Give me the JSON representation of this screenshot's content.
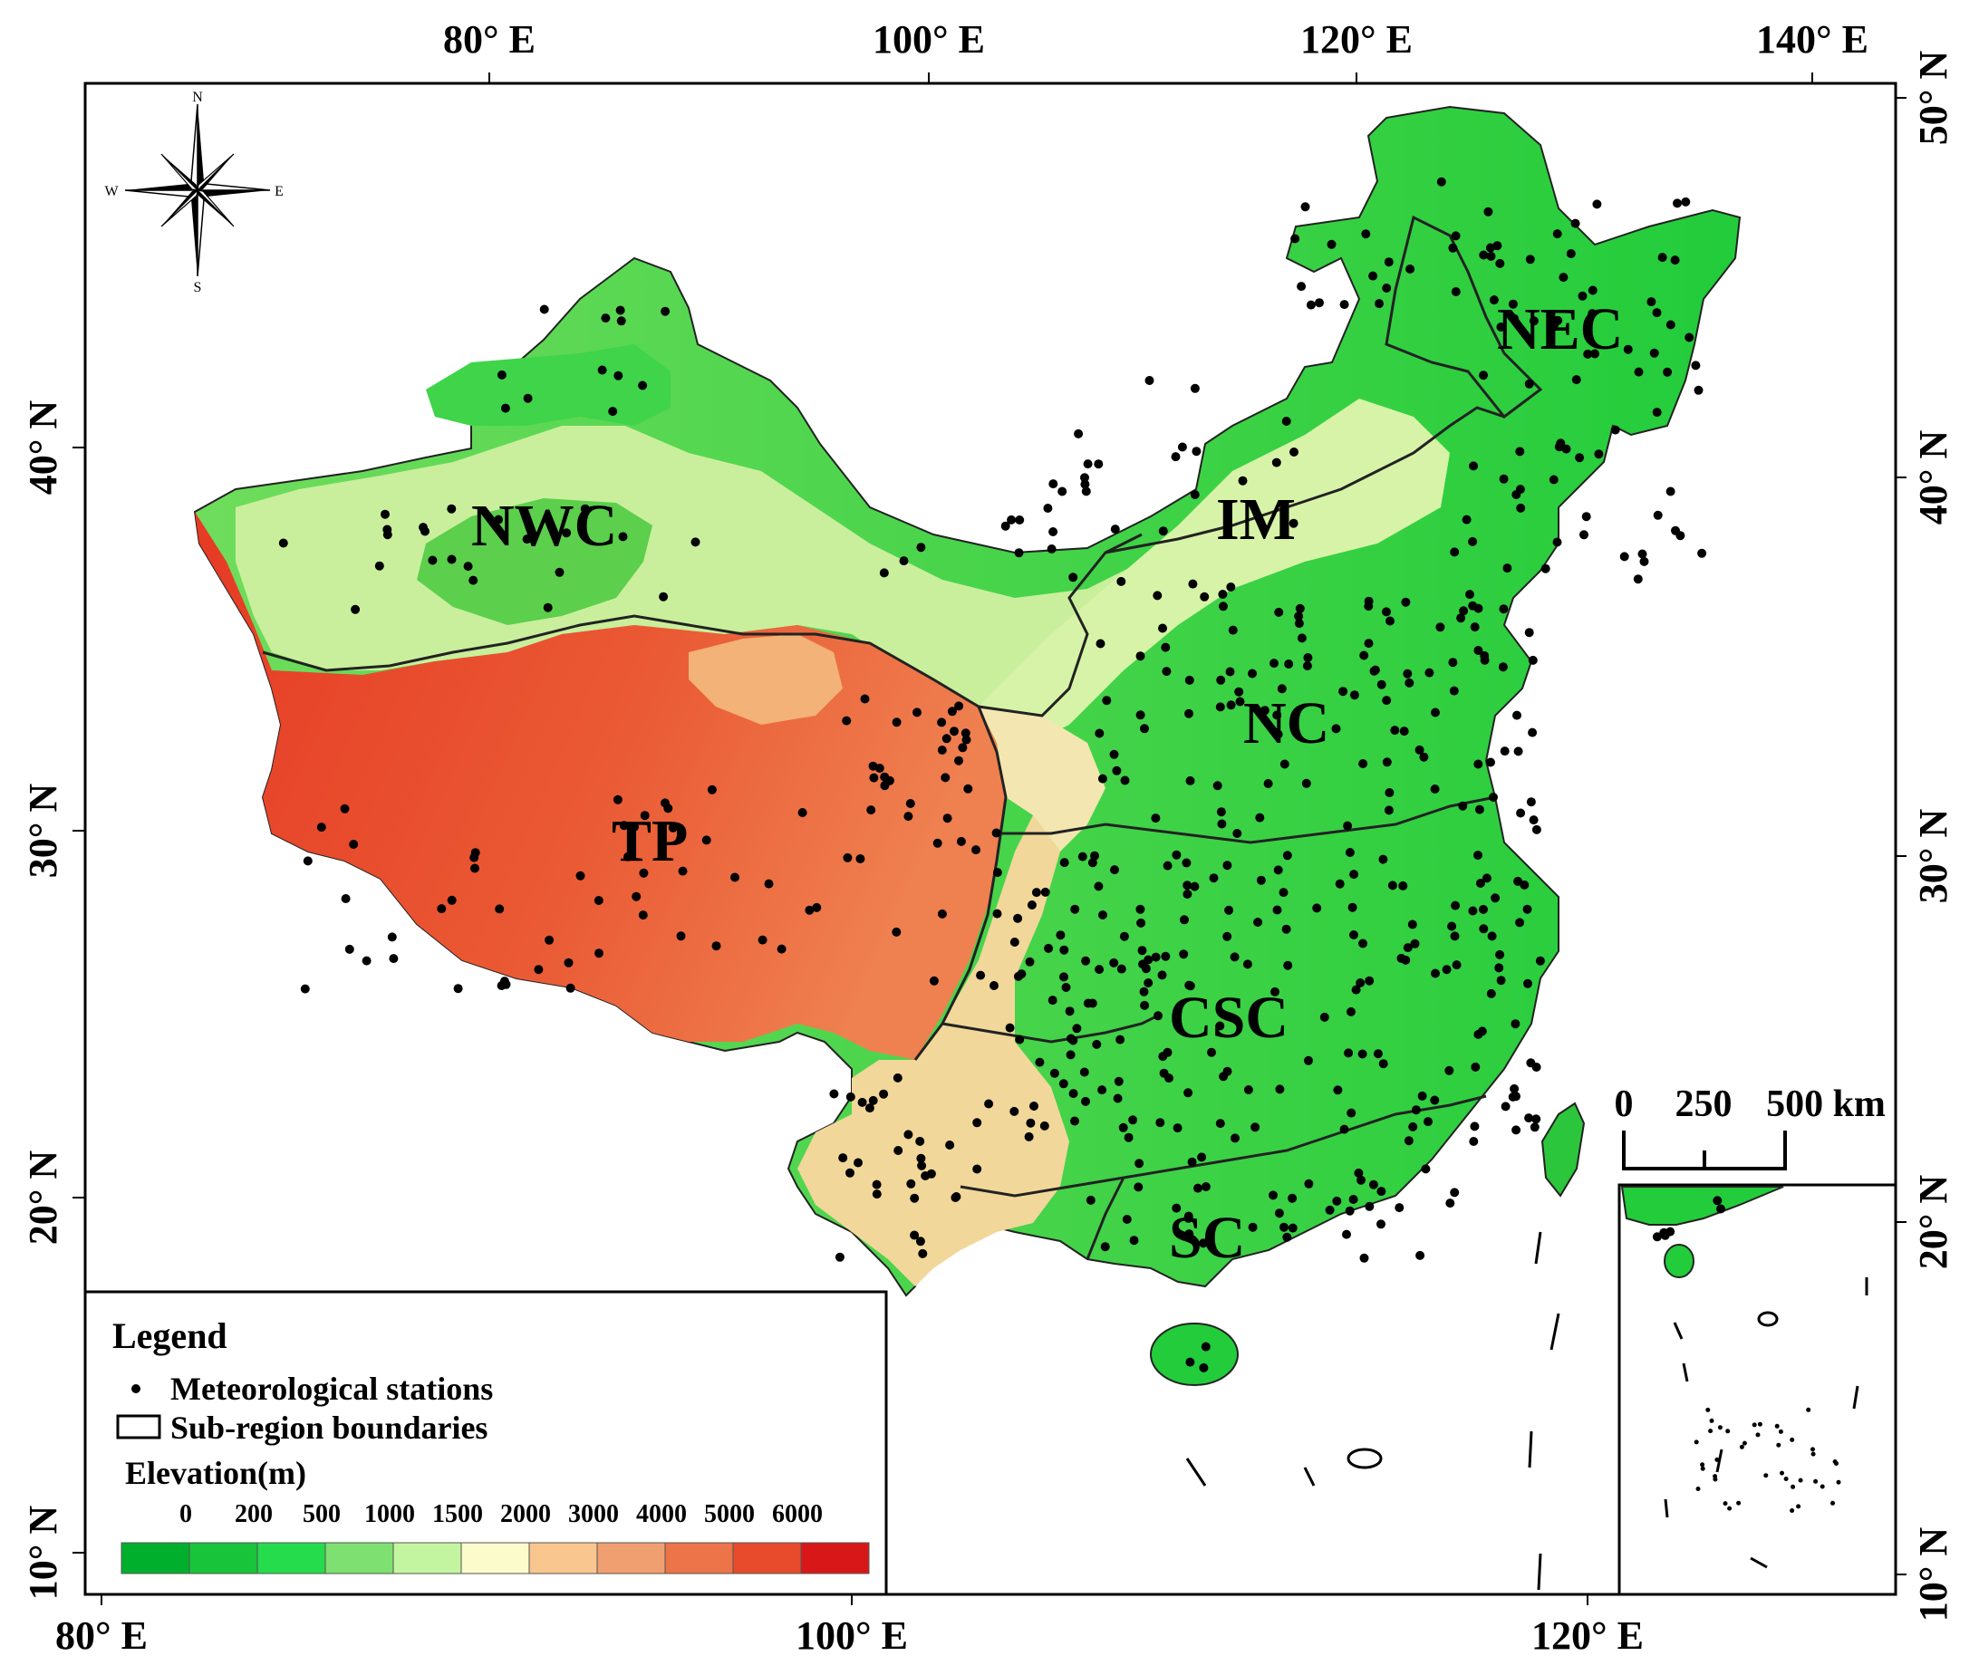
{
  "axes": {
    "top": [
      "80° E",
      "100° E",
      "120° E",
      "140° E"
    ],
    "bottom": [
      "80° E",
      "100° E",
      "120° E"
    ],
    "left": [
      "40° N",
      "30° N",
      "20° N",
      "10° N"
    ],
    "right": [
      "50° N",
      "40° N",
      "30° N",
      "20° N",
      "10° N"
    ]
  },
  "compass": {
    "n": "N",
    "s": "S",
    "e": "E",
    "w": "W"
  },
  "regions": [
    "NWC",
    "IM",
    "NEC",
    "NC",
    "TP",
    "CSC",
    "SC"
  ],
  "scale_bar": {
    "ticks": [
      "0",
      "250",
      "500 km"
    ]
  },
  "legend": {
    "title": "Legend",
    "stations_label": "Meteorological stations",
    "boundaries_label": "Sub-region boundaries",
    "elevation_title": "Elevation(m)",
    "elevation_ticks": [
      "0",
      "200",
      "500",
      "1000",
      "1500",
      "2000",
      "3000",
      "4000",
      "5000",
      "6000"
    ],
    "elevation_colors": [
      "#00b02c",
      "#18c43a",
      "#25dc4c",
      "#7de070",
      "#c3f5a0",
      "#fbfbcc",
      "#f8c68e",
      "#f0a070",
      "#ec7448",
      "#e84a2c",
      "#d81818"
    ]
  }
}
